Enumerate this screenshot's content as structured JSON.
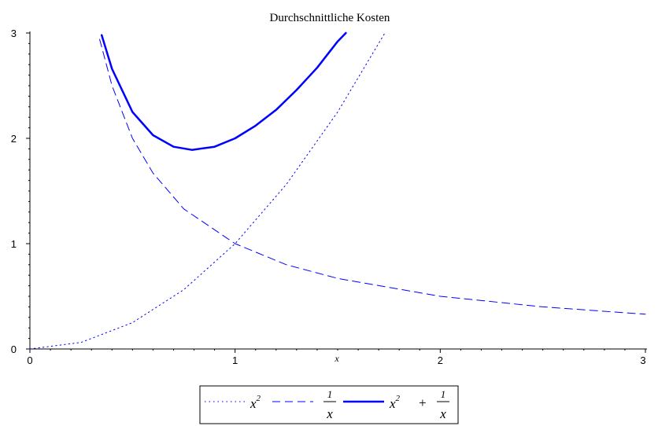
{
  "chart_data": {
    "type": "line",
    "title": "Durchschnittliche Kosten",
    "xlabel": "x",
    "ylabel": "",
    "xlim": [
      0,
      3
    ],
    "ylim": [
      0,
      3
    ],
    "x_ticks": [
      "0",
      "1",
      "2",
      "3"
    ],
    "y_ticks": [
      "0",
      "1",
      "2",
      "3"
    ],
    "grid": false,
    "legend_position": "bottom",
    "series": [
      {
        "name": "x^2",
        "style": "dotted",
        "color": "#0000ff",
        "x": [
          0,
          0.25,
          0.5,
          0.75,
          1.0,
          1.25,
          1.5,
          1.73
        ],
        "y": [
          0,
          0.0625,
          0.25,
          0.5625,
          1.0,
          1.5625,
          2.25,
          3.0
        ]
      },
      {
        "name": "1/x",
        "style": "dashed",
        "color": "#0000ff",
        "x": [
          0.34,
          0.4,
          0.5,
          0.6,
          0.75,
          1.0,
          1.25,
          1.5,
          2.0,
          2.5,
          3.0
        ],
        "y": [
          2.94,
          2.5,
          2.0,
          1.67,
          1.33,
          1.0,
          0.8,
          0.67,
          0.5,
          0.4,
          0.33
        ]
      },
      {
        "name": "x^2 + 1/x",
        "style": "solid",
        "color": "#0000ff",
        "x": [
          0.35,
          0.4,
          0.5,
          0.6,
          0.7,
          0.79,
          0.9,
          1.0,
          1.1,
          1.2,
          1.3,
          1.4,
          1.5,
          1.54
        ],
        "y": [
          2.98,
          2.66,
          2.25,
          2.03,
          1.92,
          1.89,
          1.92,
          2.0,
          2.12,
          2.27,
          2.46,
          2.67,
          2.92,
          3.0
        ]
      }
    ],
    "legend": {
      "entries": [
        {
          "base": "x",
          "sup": "2"
        },
        {
          "num": "1",
          "den": "x"
        },
        {
          "base": "x",
          "sup": "2",
          "plus": "+",
          "num": "1",
          "den": "x"
        }
      ]
    }
  }
}
